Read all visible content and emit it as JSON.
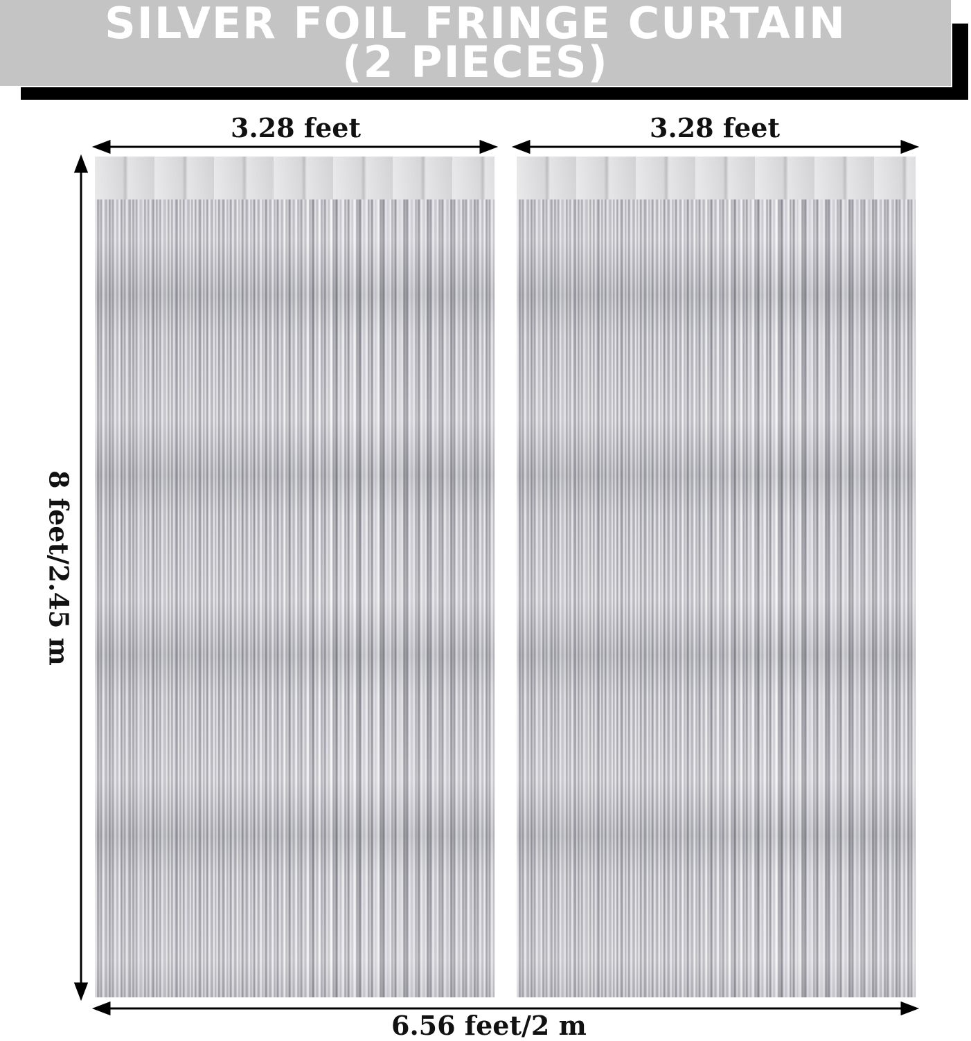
{
  "banner": {
    "line1": "SILVER FOIL FRINGE CURTAIN",
    "line2": "(2 PIECES)"
  },
  "dimensions": {
    "left_width": "3.28 feet",
    "right_width": "3.28 feet",
    "height": "8 feet/2.45 m",
    "total_width": "6.56 feet/2 m"
  },
  "colors": {
    "banner": "#c4c4c4",
    "shadow": "#000000",
    "curtain": "silver"
  }
}
